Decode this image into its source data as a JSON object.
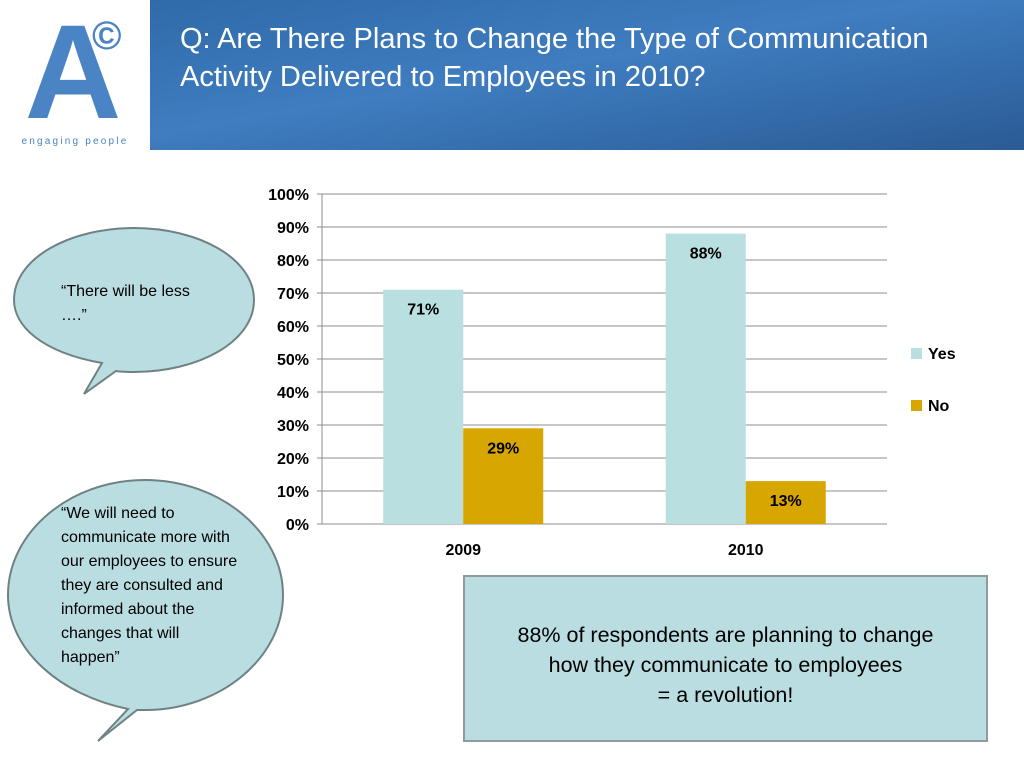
{
  "logo": {
    "letter": "A",
    "mark": "©",
    "tagline": "engaging people"
  },
  "title": "Q: Are There Plans to Change the Type of Communication Activity Delivered to Employees in 2010?",
  "quotes": [
    "“There will be less ….”",
    "“We will need to communicate more with our employees to ensure they are consulted and informed about the changes that will happen”"
  ],
  "callout": {
    "line1": "88% of respondents are planning to change",
    "line2": "how they communicate to employees",
    "line3": "= a revolution!"
  },
  "colors": {
    "yes": "#b9dfe1",
    "no": "#d7a600",
    "bubble_fill": "#b9dde0",
    "bubble_stroke": "#6f8283"
  },
  "chart_data": {
    "type": "bar",
    "categories": [
      "2009",
      "2010"
    ],
    "series": [
      {
        "name": "Yes",
        "values": [
          71,
          88
        ],
        "labels": [
          "71%",
          "88%"
        ]
      },
      {
        "name": "No",
        "values": [
          29,
          13
        ],
        "labels": [
          "29%",
          "13%"
        ]
      }
    ],
    "ylim": [
      0,
      100
    ],
    "yticks": [
      "0%",
      "10%",
      "20%",
      "30%",
      "40%",
      "50%",
      "60%",
      "70%",
      "80%",
      "90%",
      "100%"
    ],
    "grid": true,
    "legend": "right"
  }
}
